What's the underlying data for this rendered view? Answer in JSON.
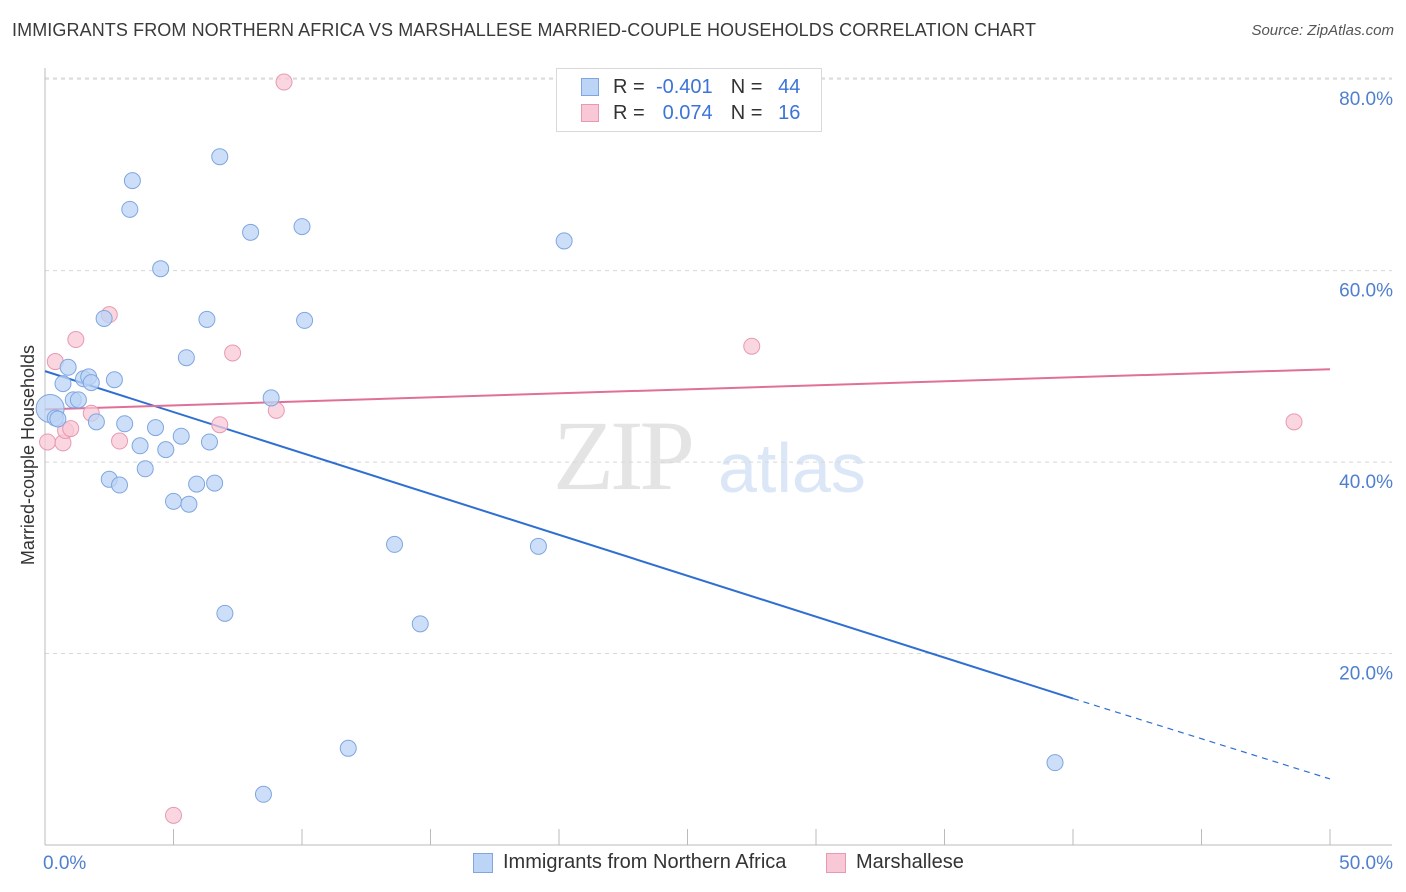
{
  "title": "IMMIGRANTS FROM NORTHERN AFRICA VS MARSHALLESE MARRIED-COUPLE HOUSEHOLDS CORRELATION CHART",
  "source": "Source: ZipAtlas.com",
  "watermark": {
    "zip": "ZIP",
    "atlas": "atlas"
  },
  "legend": {
    "rows": [
      {
        "r_label": "R =",
        "r_value": "-0.401",
        "n_label": "N =",
        "n_value": "44"
      },
      {
        "r_label": "R =",
        "r_value": "0.074",
        "n_label": "N =",
        "n_value": "16"
      }
    ]
  },
  "bottom_legend": {
    "series_a": "Immigrants from Northern Africa",
    "series_b": "Marshallese"
  },
  "colors": {
    "blue_fill": "#bcd4f5",
    "blue_stroke": "#7fa6e0",
    "blue_line": "#2f6fd1",
    "pink_fill": "#f8c8d6",
    "pink_stroke": "#e899b2",
    "pink_line": "#e07098",
    "grid": "#d8d8d8",
    "tick_text": "#4f7fcf"
  },
  "chart_data": {
    "type": "scatter",
    "title": "IMMIGRANTS FROM NORTHERN AFRICA VS MARSHALLESE MARRIED-COUPLE HOUSEHOLDS CORRELATION CHART",
    "xlabel": "",
    "ylabel": "Married-couple Households",
    "xlim": [
      0,
      50
    ],
    "ylim": [
      0,
      82
    ],
    "x_tick_labels": [
      "0.0%",
      "50.0%"
    ],
    "y_ticks": [
      20,
      40,
      60,
      80
    ],
    "y_tick_labels": [
      "20.0%",
      "40.0%",
      "60.0%",
      "80.0%"
    ],
    "grid": "horizontal dashed",
    "legend_position": "top-center",
    "series": [
      {
        "name": "Immigrants from Northern Africa",
        "R": -0.401,
        "N": 44,
        "points": [
          [
            0.2,
            45.6
          ],
          [
            0.4,
            44.6
          ],
          [
            0.7,
            48.2
          ],
          [
            0.9,
            49.9
          ],
          [
            1.1,
            46.5
          ],
          [
            1.3,
            46.5
          ],
          [
            1.5,
            48.7
          ],
          [
            1.7,
            48.9
          ],
          [
            1.8,
            48.3
          ],
          [
            2.0,
            44.2
          ],
          [
            2.3,
            55.0
          ],
          [
            2.5,
            38.2
          ],
          [
            2.7,
            48.6
          ],
          [
            2.9,
            37.6
          ],
          [
            3.1,
            44.0
          ],
          [
            3.3,
            66.4
          ],
          [
            3.4,
            69.4
          ],
          [
            3.7,
            41.7
          ],
          [
            3.9,
            39.3
          ],
          [
            4.3,
            43.6
          ],
          [
            4.5,
            60.2
          ],
          [
            4.7,
            41.3
          ],
          [
            5.0,
            35.9
          ],
          [
            5.3,
            42.7
          ],
          [
            5.5,
            50.9
          ],
          [
            5.6,
            35.6
          ],
          [
            5.9,
            37.7
          ],
          [
            6.3,
            54.9
          ],
          [
            6.4,
            42.1
          ],
          [
            6.6,
            37.8
          ],
          [
            6.8,
            71.9
          ],
          [
            7.0,
            24.2
          ],
          [
            8.0,
            64.0
          ],
          [
            8.5,
            5.3
          ],
          [
            8.8,
            46.7
          ],
          [
            10.0,
            64.6
          ],
          [
            10.1,
            54.8
          ],
          [
            11.8,
            10.1
          ],
          [
            13.6,
            31.4
          ],
          [
            14.6,
            23.1
          ],
          [
            19.2,
            31.2
          ],
          [
            20.2,
            63.1
          ],
          [
            39.3,
            8.6
          ],
          [
            0.5,
            44.5
          ]
        ],
        "trend": {
          "x": [
            0,
            40,
            50
          ],
          "y": [
            49.5,
            15.3,
            6.9
          ],
          "solid_until": 40
        }
      },
      {
        "name": "Marshallese",
        "R": 0.074,
        "N": 16,
        "points": [
          [
            0.1,
            42.1
          ],
          [
            0.4,
            50.5
          ],
          [
            0.7,
            42.0
          ],
          [
            0.8,
            43.3
          ],
          [
            1.2,
            52.8
          ],
          [
            1.8,
            45.1
          ],
          [
            2.5,
            55.4
          ],
          [
            2.9,
            42.2
          ],
          [
            6.8,
            43.9
          ],
          [
            7.3,
            51.4
          ],
          [
            9.0,
            45.4
          ],
          [
            9.3,
            79.7
          ],
          [
            27.5,
            52.1
          ],
          [
            48.6,
            44.2
          ],
          [
            5.0,
            3.1
          ],
          [
            1.0,
            43.5
          ]
        ],
        "trend": {
          "x": [
            0,
            50
          ],
          "y": [
            45.5,
            49.7
          ]
        }
      }
    ]
  }
}
